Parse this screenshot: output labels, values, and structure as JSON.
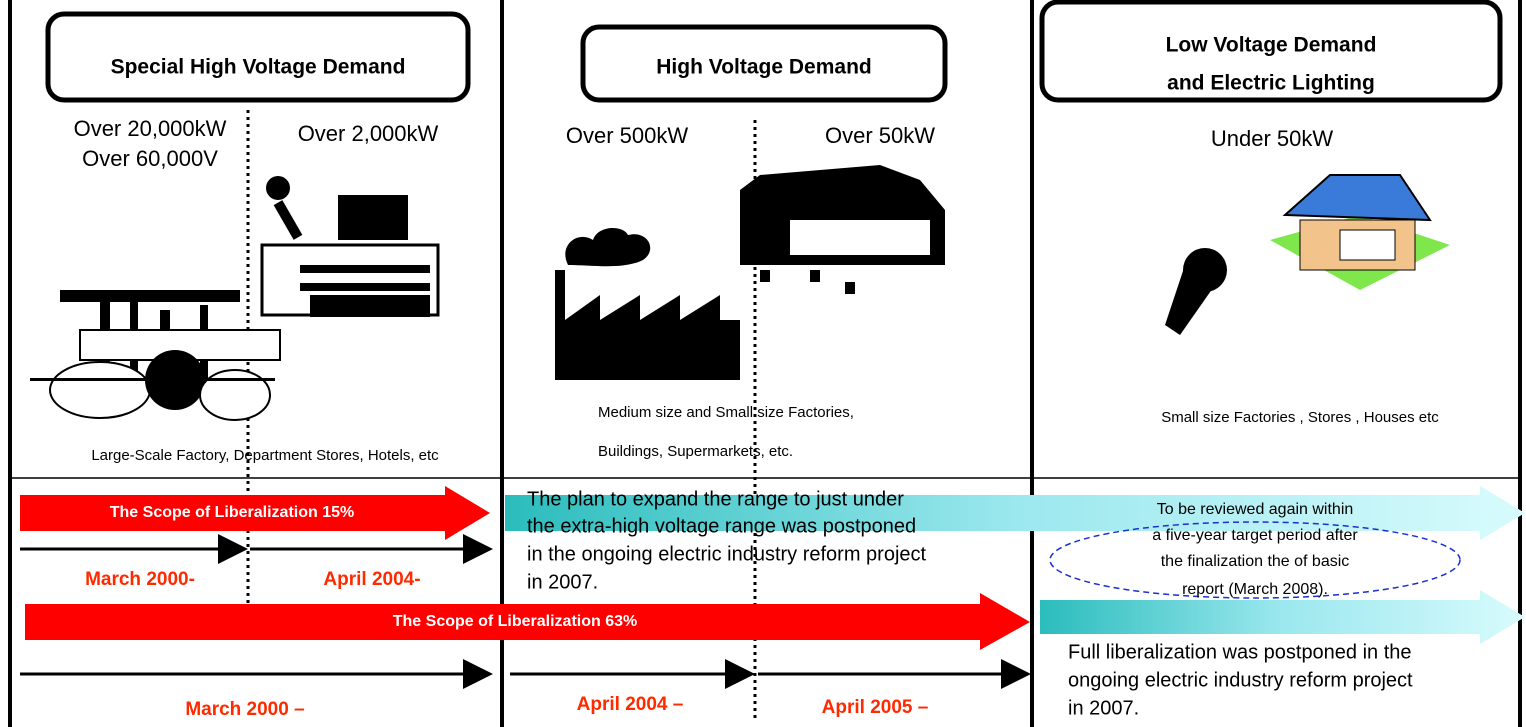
{
  "headers": [
    {
      "lines": [
        "Special High Voltage Demand"
      ]
    },
    {
      "lines": [
        "High Voltage Demand"
      ]
    },
    {
      "lines": [
        "Low Voltage Demand",
        "and Electric Lighting"
      ]
    }
  ],
  "thresholds": [
    "Over 20,000kW",
    "Over 60,000V",
    "Over 2,000kW",
    "Over 500kW",
    "Over 50kW",
    "Under 50kW"
  ],
  "descriptions": [
    "Large-Scale Factory, Department Stores, Hotels, etc",
    "Medium size and Small size Factories,",
    "Buildings, Supermarkets, etc.",
    "Small size Factories , Stores ,  Houses  etc"
  ],
  "scopes": [
    "The Scope of  Liberalization 15%",
    "The Scope of  Liberalization 63%"
  ],
  "dates": [
    "March  2000-",
    "April  2004-",
    "March  2000 –",
    "April  2004 –",
    "April  2005 –"
  ],
  "notes": {
    "postponed_range": [
      "The plan to expand the range to just under",
      "the extra-high voltage range was postponed",
      "in the ongoing electric industry reform project",
      "in 2007."
    ],
    "review": [
      "To be reviewed again within",
      "a five-year target period after",
      "the finalization the of basic",
      "report (March 2008)."
    ],
    "full": [
      "Full liberalization was postponed in the",
      "ongoing electric industry reform project",
      "in 2007."
    ]
  }
}
